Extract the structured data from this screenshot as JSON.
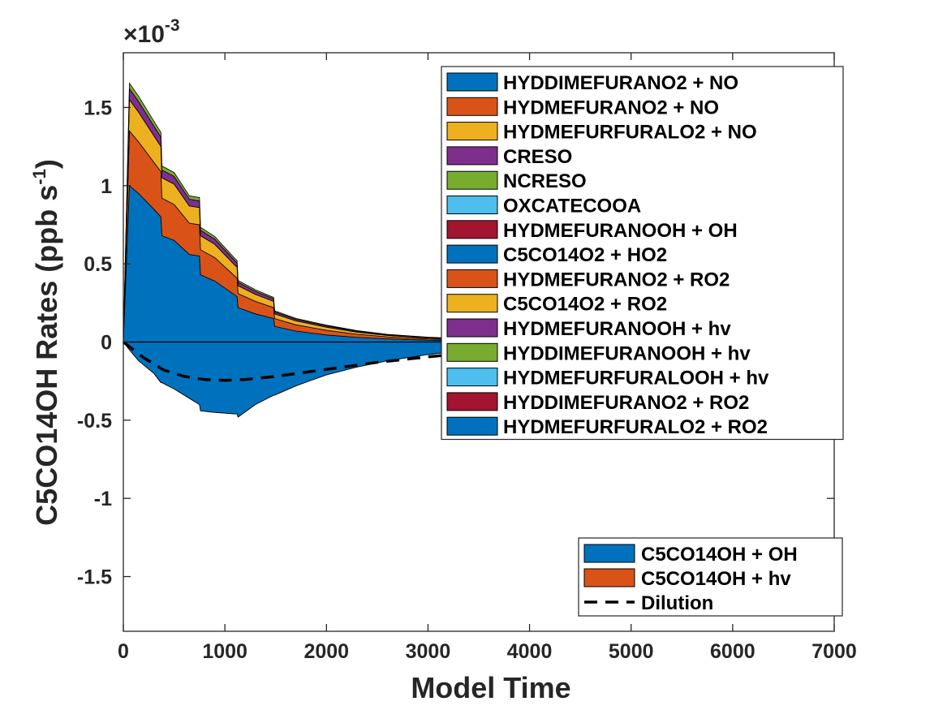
{
  "chart_data": {
    "type": "area",
    "xlabel": "Model Time",
    "ylabel": "C5CO14OH Rates (ppb s",
    "ylabel_sup": "-1",
    "ylabel_close": ")",
    "exponent_base": "×10",
    "exponent_power": "-3",
    "xlim": [
      0,
      7000
    ],
    "ylim": [
      -1.85,
      1.85
    ],
    "x_ticks": [
      0,
      1000,
      2000,
      3000,
      4000,
      5000,
      6000,
      7000
    ],
    "x_tick_labels": [
      "0",
      "1000",
      "2000",
      "3000",
      "4000",
      "5000",
      "6000",
      "7000"
    ],
    "y_ticks": [
      -1.5,
      -1,
      -0.5,
      0,
      0.5,
      1,
      1.5
    ],
    "y_tick_labels": [
      "-1.5",
      "-1",
      "-0.5",
      "0",
      "0.5",
      "1",
      "1.5"
    ],
    "grid": false,
    "x": [
      0,
      60,
      150,
      300,
      370,
      380,
      500,
      650,
      750,
      760,
      900,
      1100,
      1120,
      1130,
      1300,
      1480,
      1490,
      1700,
      2000,
      2300,
      2600,
      3000,
      3400,
      3800,
      4200,
      4600,
      5000,
      5500,
      6000,
      6700
    ],
    "positive_series": [
      {
        "name": "HYDDIMEFURANO2 + NO",
        "color": "#0072BD",
        "values": [
          0.0,
          1.0,
          0.95,
          0.85,
          0.8,
          0.68,
          0.65,
          0.56,
          0.55,
          0.43,
          0.39,
          0.3,
          0.29,
          0.22,
          0.18,
          0.15,
          0.1,
          0.07,
          0.045,
          0.03,
          0.02,
          0.012,
          0.008,
          0.005,
          0.003,
          0.002,
          0.0015,
          0.001,
          0.0005,
          0.0
        ]
      },
      {
        "name": "HYDMEFURANO2 + NO",
        "color": "#D95319",
        "values": [
          0.0,
          0.35,
          0.33,
          0.3,
          0.29,
          0.24,
          0.23,
          0.2,
          0.2,
          0.16,
          0.15,
          0.12,
          0.12,
          0.09,
          0.08,
          0.07,
          0.05,
          0.04,
          0.03,
          0.02,
          0.013,
          0.008,
          0.005,
          0.003,
          0.002,
          0.0015,
          0.001,
          0.0005,
          0.0003,
          0.0
        ]
      },
      {
        "name": "HYDMEFURFURALO2 + NO",
        "color": "#EDB120",
        "values": [
          0.0,
          0.2,
          0.19,
          0.17,
          0.16,
          0.13,
          0.13,
          0.11,
          0.11,
          0.09,
          0.085,
          0.07,
          0.07,
          0.05,
          0.045,
          0.04,
          0.03,
          0.025,
          0.02,
          0.013,
          0.009,
          0.006,
          0.004,
          0.002,
          0.0015,
          0.001,
          0.0008,
          0.0004,
          0.0002,
          0.0
        ]
      },
      {
        "name": "CRESO",
        "color": "#7E2F8E",
        "values": [
          0.0,
          0.07,
          0.068,
          0.062,
          0.06,
          0.05,
          0.049,
          0.043,
          0.042,
          0.035,
          0.033,
          0.028,
          0.027,
          0.022,
          0.019,
          0.016,
          0.013,
          0.01,
          0.008,
          0.006,
          0.004,
          0.003,
          0.002,
          0.001,
          0.0008,
          0.0005,
          0.0004,
          0.0002,
          0.0001,
          0.0
        ]
      },
      {
        "name": "NCRESO",
        "color": "#77AC30",
        "values": [
          0.0,
          0.035,
          0.034,
          0.031,
          0.03,
          0.026,
          0.025,
          0.022,
          0.022,
          0.018,
          0.017,
          0.015,
          0.014,
          0.012,
          0.01,
          0.009,
          0.007,
          0.006,
          0.005,
          0.004,
          0.003,
          0.002,
          0.0015,
          0.001,
          0.0007,
          0.0005,
          0.0004,
          0.0002,
          0.0001,
          0.0
        ]
      }
    ],
    "negative_series": [
      {
        "name": "C5CO14OH + OH",
        "color": "#0072BD",
        "values": [
          0.0,
          -0.05,
          -0.12,
          -0.2,
          -0.26,
          -0.26,
          -0.3,
          -0.36,
          -0.4,
          -0.44,
          -0.45,
          -0.46,
          -0.46,
          -0.48,
          -0.4,
          -0.34,
          -0.34,
          -0.28,
          -0.21,
          -0.16,
          -0.12,
          -0.08,
          -0.05,
          -0.03,
          -0.02,
          -0.012,
          -0.008,
          -0.004,
          -0.002,
          0.0
        ]
      },
      {
        "name": "C5CO14OH + hv",
        "color": "#D95319",
        "values": [
          0,
          0,
          0,
          0,
          0,
          0,
          0,
          0,
          0,
          0,
          0,
          0,
          0,
          0,
          0,
          0,
          0,
          0,
          0,
          0,
          0,
          0,
          0,
          0,
          0,
          0,
          0,
          0,
          0,
          0
        ]
      }
    ],
    "dilution": {
      "name": "Dilution",
      "x": [
        0,
        200,
        400,
        600,
        800,
        1000,
        1200,
        1500,
        2000,
        2500,
        3000,
        3500,
        4000,
        4500,
        5000,
        5500,
        6000,
        6700
      ],
      "values": [
        0.0,
        -0.1,
        -0.18,
        -0.22,
        -0.24,
        -0.245,
        -0.24,
        -0.22,
        -0.175,
        -0.13,
        -0.095,
        -0.065,
        -0.045,
        -0.03,
        -0.02,
        -0.012,
        -0.007,
        -0.003
      ]
    },
    "legend_top": {
      "placement": "top-right",
      "entries": [
        {
          "label": "HYDDIMEFURANO2 + NO",
          "color": "#0072BD"
        },
        {
          "label": "HYDMEFURANO2 + NO",
          "color": "#D95319"
        },
        {
          "label": "HYDMEFURFURALO2 + NO",
          "color": "#EDB120"
        },
        {
          "label": "CRESO",
          "color": "#7E2F8E"
        },
        {
          "label": "NCRESO",
          "color": "#77AC30"
        },
        {
          "label": "OXCATECOOA",
          "color": "#4DBEEE"
        },
        {
          "label": "HYDMEFURANOOH + OH",
          "color": "#A2142F"
        },
        {
          "label": "C5CO14O2 + HO2",
          "color": "#0072BD"
        },
        {
          "label": "HYDMEFURANO2 + RO2",
          "color": "#D95319"
        },
        {
          "label": "C5CO14O2 + RO2",
          "color": "#EDB120"
        },
        {
          "label": "HYDMEFURANOOH + hv",
          "color": "#7E2F8E"
        },
        {
          "label": "HYDDIMEFURANOOH + hv",
          "color": "#77AC30"
        },
        {
          "label": "HYDMEFURFURALOOH + hv",
          "color": "#4DBEEE"
        },
        {
          "label": "HYDDIMEFURANO2 + RO2",
          "color": "#A2142F"
        },
        {
          "label": "HYDMEFURFURALO2 + RO2",
          "color": "#0072BD"
        }
      ]
    },
    "legend_bottom": {
      "placement": "bottom-right",
      "entries": [
        {
          "label": "C5CO14OH + OH",
          "color": "#0072BD",
          "kind": "patch"
        },
        {
          "label": "C5CO14OH + hv",
          "color": "#D95319",
          "kind": "patch"
        },
        {
          "label": "Dilution",
          "color": "#000000",
          "kind": "dashed-line"
        }
      ]
    }
  }
}
